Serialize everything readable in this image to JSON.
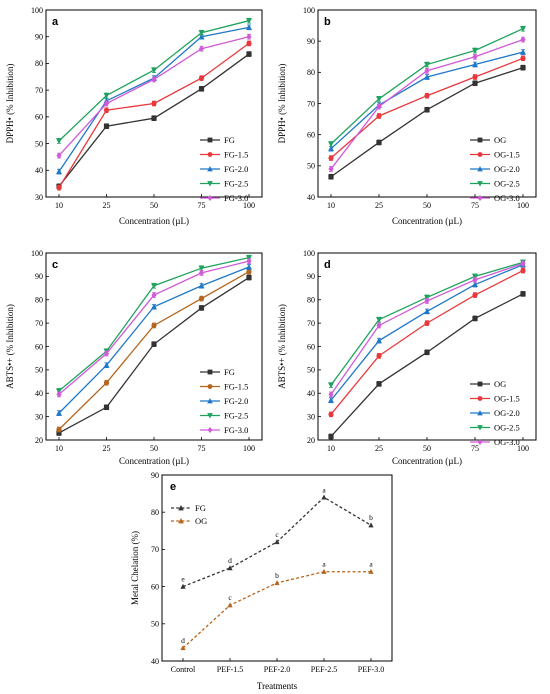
{
  "chart_data": [
    {
      "panel": "a",
      "type": "line",
      "xlabel": "Concentration (µL)",
      "ylabel": "DPPH• (% Inhibition)",
      "categories": [
        "10",
        "25",
        "50",
        "75",
        "100"
      ],
      "ylim": [
        30,
        100
      ],
      "yticks": [
        30,
        40,
        50,
        60,
        70,
        80,
        90,
        100
      ],
      "legend_position": "bottom-right",
      "series": [
        {
          "name": "FG",
          "color": "#333333",
          "marker": "square",
          "values": [
            34,
            56.5,
            59.5,
            70.5,
            83.5
          ]
        },
        {
          "name": "FG-1.5",
          "color": "#e8383d",
          "marker": "circle",
          "values": [
            33.5,
            62.5,
            65,
            74.5,
            87.5
          ]
        },
        {
          "name": "FG-2.0",
          "color": "#1f78c8",
          "marker": "triangle-up",
          "values": [
            39.5,
            66,
            74.5,
            90,
            93.5
          ]
        },
        {
          "name": "FG-2.5",
          "color": "#1fa35e",
          "marker": "triangle-down",
          "values": [
            51,
            68,
            77.5,
            91.5,
            96
          ]
        },
        {
          "name": "FG-3.0",
          "color": "#d05ad8",
          "marker": "diamond",
          "values": [
            45.5,
            65,
            74,
            85.5,
            90
          ]
        }
      ]
    },
    {
      "panel": "b",
      "type": "line",
      "xlabel": "Concentration (µL)",
      "ylabel": "DPPH• (% Inhibition)",
      "categories": [
        "10",
        "25",
        "50",
        "75",
        "100"
      ],
      "ylim": [
        40,
        100
      ],
      "yticks": [
        40,
        50,
        60,
        70,
        80,
        90,
        100
      ],
      "legend_position": "bottom-right",
      "series": [
        {
          "name": "OG",
          "color": "#333333",
          "marker": "square",
          "values": [
            46.5,
            57.5,
            68,
            76.5,
            81.5
          ]
        },
        {
          "name": "OG-1.5",
          "color": "#e8383d",
          "marker": "circle",
          "values": [
            52.5,
            66,
            72.5,
            78.5,
            84.5
          ]
        },
        {
          "name": "OG-2.0",
          "color": "#1f78c8",
          "marker": "triangle-up",
          "values": [
            55.5,
            69.5,
            78.5,
            82.5,
            86.5
          ]
        },
        {
          "name": "OG-2.5",
          "color": "#1fa35e",
          "marker": "triangle-down",
          "values": [
            57,
            71.5,
            82.5,
            87,
            94
          ]
        },
        {
          "name": "OG-3.0",
          "color": "#d05ad8",
          "marker": "diamond",
          "values": [
            49,
            69,
            80.5,
            85,
            90.5
          ]
        }
      ]
    },
    {
      "panel": "c",
      "type": "line",
      "xlabel": "Concentration (µL)",
      "ylabel": "ABTS•+ (% Inhibition)",
      "categories": [
        "10",
        "25",
        "50",
        "75",
        "100"
      ],
      "ylim": [
        20,
        100
      ],
      "yticks": [
        20,
        30,
        40,
        50,
        60,
        70,
        80,
        90,
        100
      ],
      "legend_position": "bottom-right",
      "series": [
        {
          "name": "FG",
          "color": "#333333",
          "marker": "square",
          "values": [
            23,
            34,
            61,
            76.5,
            89.5
          ]
        },
        {
          "name": "FG-1.5",
          "color": "#b5651d",
          "marker": "circle",
          "values": [
            24.5,
            44.5,
            69,
            80.5,
            92
          ]
        },
        {
          "name": "FG-2.0",
          "color": "#1f78c8",
          "marker": "triangle-up",
          "values": [
            31.5,
            52,
            77,
            86,
            94
          ]
        },
        {
          "name": "FG-2.5",
          "color": "#1fa35e",
          "marker": "triangle-down",
          "values": [
            41,
            58,
            86,
            93.5,
            98
          ]
        },
        {
          "name": "FG-3.0",
          "color": "#d05ad8",
          "marker": "diamond",
          "values": [
            39.5,
            57,
            82,
            91.5,
            96.5
          ]
        }
      ]
    },
    {
      "panel": "d",
      "type": "line",
      "xlabel": "Concentration (µL)",
      "ylabel": "ABTS•+ (% Inhibition)",
      "categories": [
        "10",
        "25",
        "50",
        "75",
        "100"
      ],
      "ylim": [
        20,
        100
      ],
      "yticks": [
        20,
        30,
        40,
        50,
        60,
        70,
        80,
        90,
        100
      ],
      "legend_position": "bottom-right",
      "series": [
        {
          "name": "OG",
          "color": "#333333",
          "marker": "square",
          "values": [
            21.5,
            44,
            57.5,
            72,
            82.5
          ]
        },
        {
          "name": "OG-1.5",
          "color": "#e8383d",
          "marker": "circle",
          "values": [
            31,
            56,
            70,
            82,
            92.5
          ]
        },
        {
          "name": "OG-2.0",
          "color": "#1f78c8",
          "marker": "triangle-up",
          "values": [
            37,
            62.5,
            75,
            86.5,
            95
          ]
        },
        {
          "name": "OG-2.5",
          "color": "#1fa35e",
          "marker": "triangle-down",
          "values": [
            43.5,
            71.5,
            81,
            90,
            96
          ]
        },
        {
          "name": "OG-3.0",
          "color": "#d05ad8",
          "marker": "diamond",
          "values": [
            39.5,
            69,
            79.5,
            88.5,
            95.5
          ]
        }
      ]
    },
    {
      "panel": "e",
      "type": "line",
      "xlabel": "Treatments",
      "ylabel": "Metal Chelation (%)",
      "categories": [
        "Control",
        "PEF-1.5",
        "PEF-2.0",
        "PEF-2.5",
        "PEF-3.0"
      ],
      "ylim": [
        40,
        90
      ],
      "yticks": [
        40,
        50,
        60,
        70,
        80,
        90
      ],
      "legend_position": "top-left",
      "series": [
        {
          "name": "FG",
          "color": "#333333",
          "marker": "triangle-up",
          "dashed": true,
          "values": [
            60,
            65,
            72,
            84,
            76.5
          ],
          "letters": [
            "e",
            "d",
            "c",
            "a",
            "b"
          ]
        },
        {
          "name": "OG",
          "color": "#b5651d",
          "marker": "triangle-up",
          "dashed": true,
          "values": [
            43.5,
            55,
            61,
            64,
            64
          ],
          "letters": [
            "d",
            "c",
            "b",
            "a",
            "a"
          ]
        }
      ]
    }
  ]
}
